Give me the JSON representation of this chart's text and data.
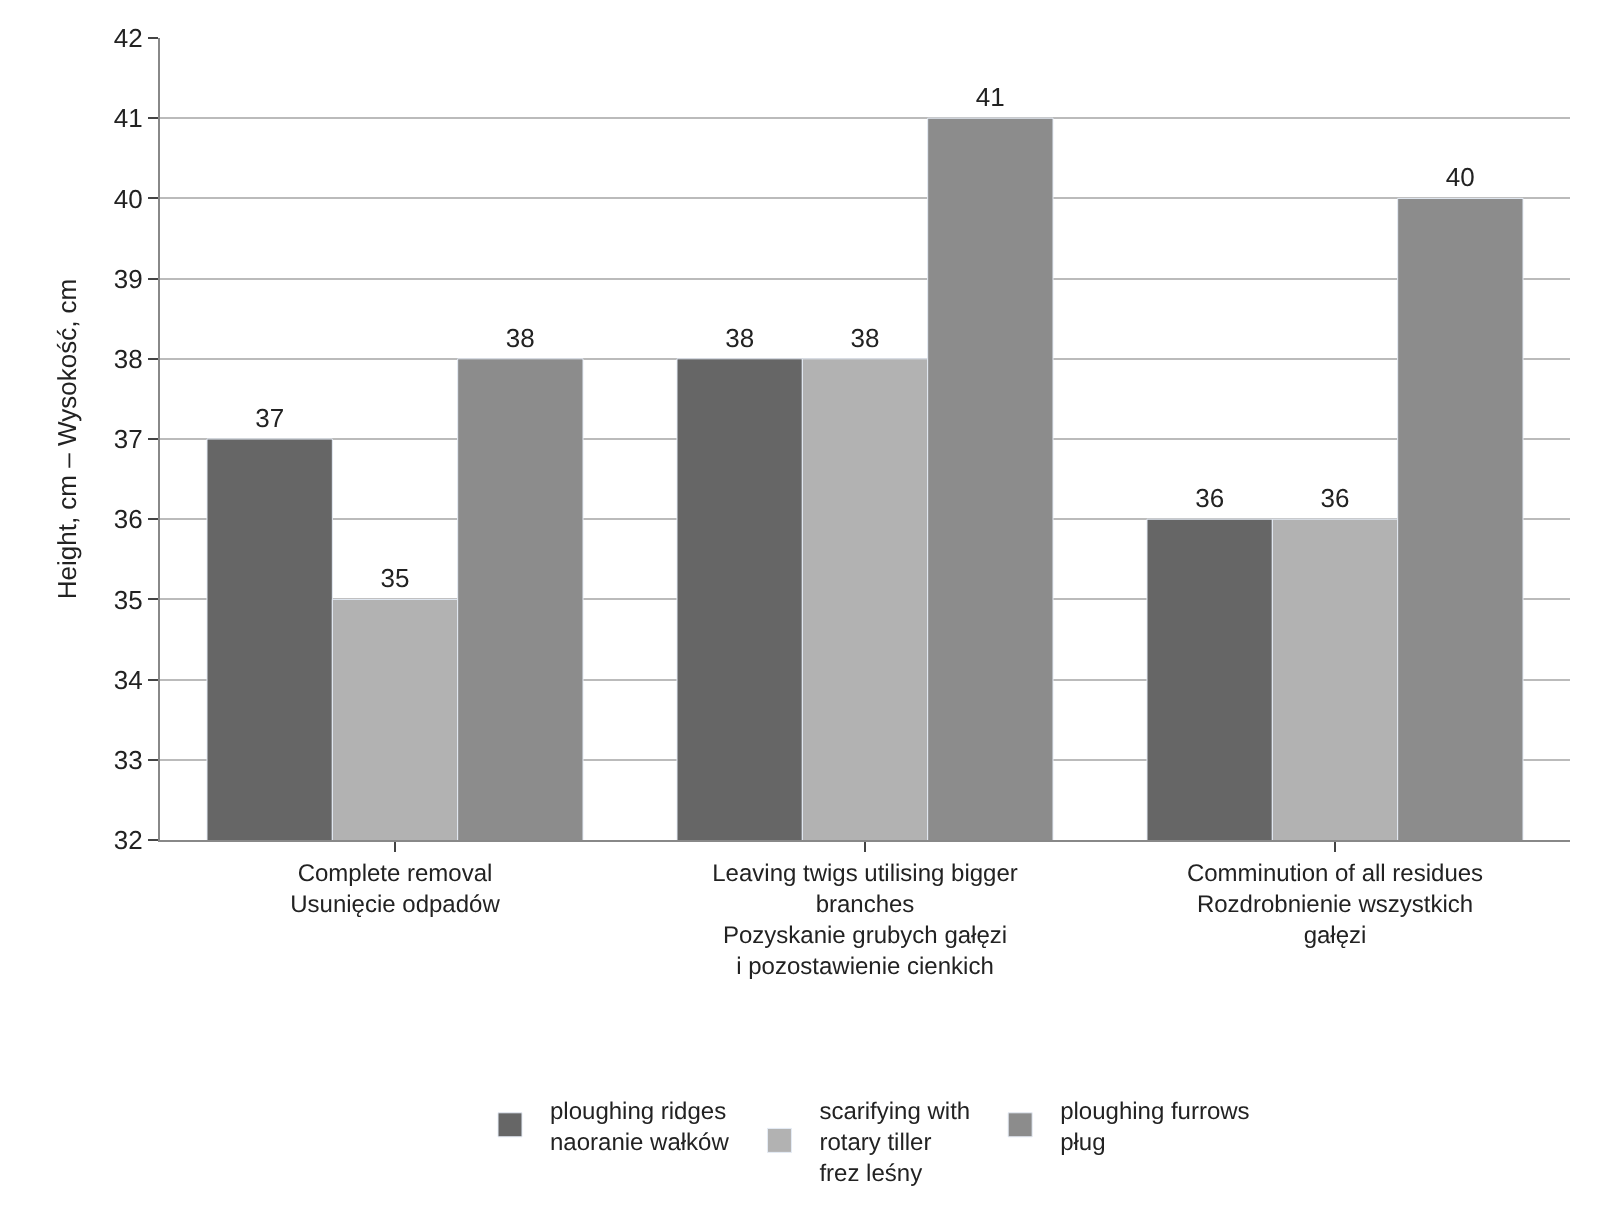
{
  "chart_data": {
    "type": "bar",
    "categories": [
      "Complete removal\nUsunięcie odpadów",
      "Leaving twigs utilising bigger\nbranches\nPozyskanie grubych gałęzi\ni pozostawienie cienkich",
      "Comminution of all residues\nRozdrobnienie wszystkich\ngałęzi"
    ],
    "series": [
      {
        "name": "ploughing ridges\nnaoranie wałków",
        "color": "#666666",
        "values": [
          37,
          38,
          36
        ]
      },
      {
        "name": "scarifying with\nrotary tiller\nfrez leśny",
        "color": "#b2b2b2",
        "values": [
          35,
          38,
          36
        ]
      },
      {
        "name": "ploughing furrows\npług",
        "color": "#8c8c8c",
        "values": [
          38,
          41,
          40
        ]
      }
    ],
    "ylabel": "Height, cm – Wysokość, cm",
    "ylim": [
      32,
      42
    ],
    "yticks": [
      32,
      33,
      34,
      35,
      36,
      37,
      38,
      39,
      40,
      41,
      42
    ],
    "grid": "y",
    "legend": "bottom",
    "data_labels": true
  }
}
